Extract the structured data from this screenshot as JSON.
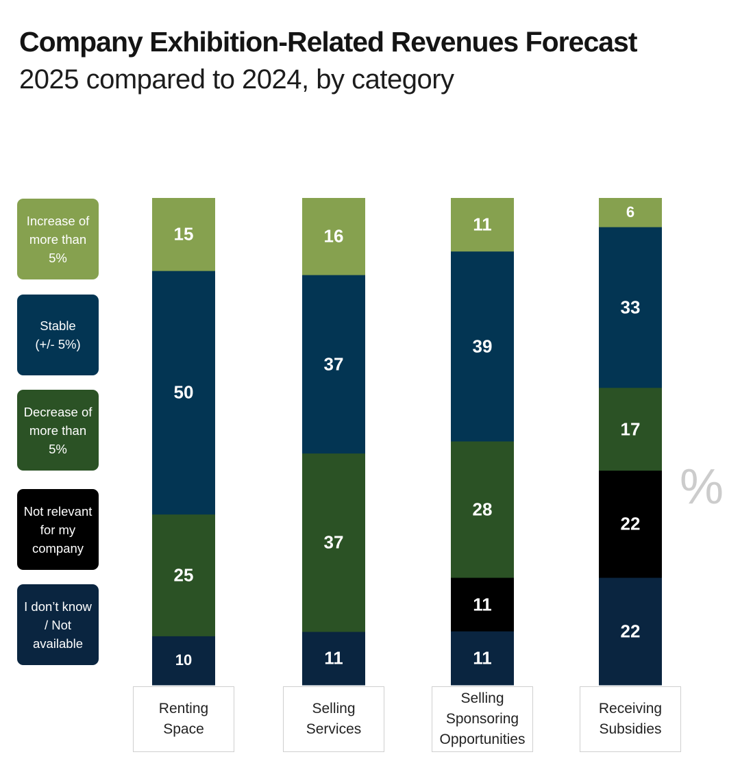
{
  "colors": {
    "increase": "#86a14f",
    "stable": "#033553",
    "decrease": "#2b5225",
    "not_relevant": "#000000",
    "unknown": "#0a2540"
  },
  "chart_data": {
    "type": "bar",
    "stacked": true,
    "title": "Company Exhibition-Related Revenues Forecast",
    "subtitle": "2025 compared to 2024, by category",
    "unit_label": "%",
    "categories": [
      {
        "lines": [
          "Renting",
          "Space"
        ]
      },
      {
        "lines": [
          "Selling",
          "Services"
        ]
      },
      {
        "lines": [
          "Selling",
          "Sponsoring",
          "Opportunities"
        ]
      },
      {
        "lines": [
          "Receiving",
          "Subsidies"
        ]
      }
    ],
    "series": [
      {
        "key": "increase",
        "legend_lines": [
          "Increase of",
          "more than",
          "5%"
        ],
        "values": [
          15,
          16,
          11,
          6
        ]
      },
      {
        "key": "stable",
        "legend_lines": [
          "Stable",
          "(+/- 5%)"
        ],
        "values": [
          50,
          37,
          39,
          33
        ]
      },
      {
        "key": "decrease",
        "legend_lines": [
          "Decrease of",
          "more than",
          "5%"
        ],
        "values": [
          25,
          37,
          28,
          17
        ]
      },
      {
        "key": "not_relevant",
        "legend_lines": [
          "Not relevant",
          "for my",
          "company"
        ],
        "values": [
          0,
          0,
          11,
          22
        ]
      },
      {
        "key": "unknown",
        "legend_lines": [
          "I don’t know",
          "/ Not",
          "available"
        ],
        "values": [
          10,
          11,
          11,
          22
        ]
      }
    ]
  }
}
